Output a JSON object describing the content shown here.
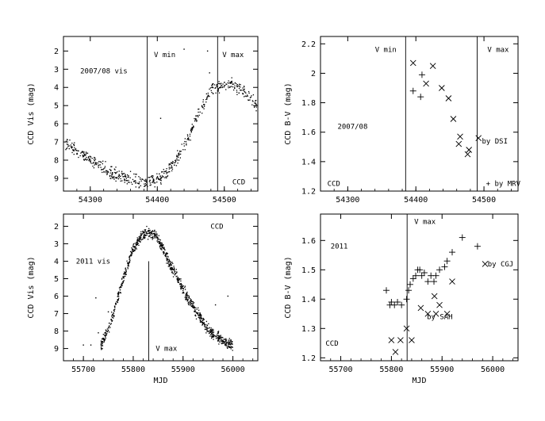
{
  "chart_data": [
    {
      "id": "p1",
      "type": "scatter",
      "title": "",
      "xlabel": "",
      "ylabel": "CCD Vis (mag)",
      "xlim": [
        54260,
        54550
      ],
      "ylim": [
        1.2,
        9.7
      ],
      "y_inverted": true,
      "xticks": [
        54300,
        54400,
        54500
      ],
      "yticks": [
        2,
        3,
        4,
        5,
        6,
        7,
        8,
        9
      ],
      "vlines": [
        54385,
        54490
      ],
      "annotations": [
        {
          "text": "V min",
          "x": 54395,
          "y": 2.2
        },
        {
          "text": "V max",
          "x": 54497,
          "y": 2.2
        },
        {
          "text": "2007/08 vis",
          "x": 54285,
          "y": 3.1
        },
        {
          "text": "CCD",
          "x": 54512,
          "y": 9.2
        }
      ],
      "series": [
        {
          "marker": "dot",
          "curve": [
            [
              54263,
              7.1
            ],
            [
              54285,
              7.6
            ],
            [
              54305,
              8.1
            ],
            [
              54325,
              8.6
            ],
            [
              54345,
              8.9
            ],
            [
              54365,
              9.1
            ],
            [
              54385,
              9.25
            ],
            [
              54405,
              9.0
            ],
            [
              54420,
              8.4
            ],
            [
              54435,
              7.6
            ],
            [
              54448,
              6.6
            ],
            [
              54460,
              5.6
            ],
            [
              54472,
              4.7
            ],
            [
              54482,
              4.1
            ],
            [
              54495,
              3.9
            ],
            [
              54510,
              3.85
            ],
            [
              54525,
              4.1
            ],
            [
              54540,
              4.6
            ],
            [
              54548,
              5.0
            ]
          ],
          "spread": 0.25,
          "n": 600,
          "outliers": [
            [
              54440,
              1.9
            ],
            [
              54475,
              2.0
            ],
            [
              54405,
              5.7
            ],
            [
              54478,
              3.2
            ]
          ]
        }
      ]
    },
    {
      "id": "p2",
      "type": "scatter",
      "title": "",
      "xlabel": "",
      "ylabel": "CCD B-V (mag)",
      "xlim": [
        54260,
        54550
      ],
      "ylim": [
        1.2,
        2.25
      ],
      "y_inverted": false,
      "xticks": [
        54300,
        54400,
        54500
      ],
      "yticks": [
        1.2,
        1.4,
        1.6,
        1.8,
        2,
        2.2
      ],
      "ytick_labels": [
        "1.2",
        "1.4",
        "1.6",
        "1.8",
        "2",
        "2.2"
      ],
      "vlines": [
        54385,
        54490
      ],
      "annotations": [
        {
          "text": "V min",
          "x": 54340,
          "y": 2.16
        },
        {
          "text": "V max",
          "x": 54505,
          "y": 2.16
        },
        {
          "text": "2007/08",
          "x": 54285,
          "y": 1.64
        },
        {
          "text": "CCD",
          "x": 54270,
          "y": 1.25
        },
        {
          "text": "by DSI",
          "x": 54497,
          "y": 1.54
        },
        {
          "text": "+ by MRV",
          "x": 54503,
          "y": 1.25
        }
      ],
      "series": [
        {
          "name": "by DSI",
          "marker": "x",
          "points": [
            [
              54396,
              2.07
            ],
            [
              54415,
              1.93
            ],
            [
              54425,
              2.05
            ],
            [
              54438,
              1.9
            ],
            [
              54448,
              1.83
            ],
            [
              54455,
              1.69
            ],
            [
              54465,
              1.57
            ],
            [
              54463,
              1.52
            ],
            [
              54476,
              1.45
            ],
            [
              54478,
              1.48
            ],
            [
              54492,
              1.56
            ]
          ]
        },
        {
          "name": "+ by MRV",
          "marker": "plus",
          "points": [
            [
              54396,
              1.88
            ],
            [
              54407,
              1.84
            ],
            [
              54409,
              1.99
            ]
          ]
        }
      ]
    },
    {
      "id": "p3",
      "type": "scatter",
      "title": "",
      "xlabel": "MJD",
      "ylabel": "CCD Vis (mag)",
      "xlim": [
        55660,
        56050
      ],
      "ylim": [
        1.3,
        9.7
      ],
      "y_inverted": true,
      "xticks": [
        55700,
        55800,
        55900,
        56000
      ],
      "yticks": [
        2,
        3,
        4,
        5,
        6,
        7,
        8,
        9
      ],
      "vlines": [
        55831
      ],
      "vline_top_y": 4.0,
      "annotations": [
        {
          "text": "CCD",
          "x": 55955,
          "y": 2.0
        },
        {
          "text": "2011 vis",
          "x": 55685,
          "y": 4.0
        },
        {
          "text": "V max",
          "x": 55845,
          "y": 9.0
        }
      ],
      "series": [
        {
          "marker": "dot",
          "curve": [
            [
              55735,
              8.9
            ],
            [
              55755,
              7.5
            ],
            [
              55770,
              6.0
            ],
            [
              55785,
              4.5
            ],
            [
              55800,
              3.3
            ],
            [
              55815,
              2.6
            ],
            [
              55830,
              2.35
            ],
            [
              55845,
              2.5
            ],
            [
              55860,
              3.3
            ],
            [
              55880,
              4.5
            ],
            [
              55900,
              5.6
            ],
            [
              55920,
              6.6
            ],
            [
              55940,
              7.5
            ],
            [
              55960,
              8.2
            ],
            [
              55980,
              8.6
            ],
            [
              56000,
              8.8
            ]
          ],
          "spread": 0.22,
          "n": 900,
          "outliers": [
            [
              55700,
              8.8
            ],
            [
              55715,
              8.8
            ],
            [
              55730,
              8.1
            ],
            [
              55750,
              6.9
            ],
            [
              55725,
              6.1
            ],
            [
              55965,
              6.5
            ],
            [
              55990,
              6.0
            ]
          ]
        }
      ]
    },
    {
      "id": "p4",
      "type": "scatter",
      "title": "",
      "xlabel": "MJD",
      "ylabel": "CCD B-V (mag)",
      "xlim": [
        55660,
        56050
      ],
      "ylim": [
        1.19,
        1.69
      ],
      "y_inverted": false,
      "xticks": [
        55700,
        55800,
        55900,
        56000
      ],
      "yticks": [
        1.2,
        1.3,
        1.4,
        1.5,
        1.6
      ],
      "vlines": [
        55831
      ],
      "annotations": [
        {
          "text": "V max",
          "x": 55845,
          "y": 1.665
        },
        {
          "text": "2011",
          "x": 55680,
          "y": 1.58
        },
        {
          "text": "CCD",
          "x": 55670,
          "y": 1.25
        },
        {
          "text": "by CGJ",
          "x": 55990,
          "y": 1.52
        },
        {
          "text": "by SAH",
          "x": 55870,
          "y": 1.34
        }
      ],
      "series": [
        {
          "name": "by CGJ",
          "marker": "plus",
          "points": [
            [
              55790,
              1.43
            ],
            [
              55797,
              1.38
            ],
            [
              55800,
              1.39
            ],
            [
              55806,
              1.38
            ],
            [
              55812,
              1.39
            ],
            [
              55820,
              1.38
            ],
            [
              55830,
              1.4
            ],
            [
              55834,
              1.43
            ],
            [
              55837,
              1.45
            ],
            [
              55843,
              1.47
            ],
            [
              55848,
              1.48
            ],
            [
              55852,
              1.5
            ],
            [
              55856,
              1.5
            ],
            [
              55860,
              1.48
            ],
            [
              55865,
              1.49
            ],
            [
              55872,
              1.46
            ],
            [
              55878,
              1.48
            ],
            [
              55884,
              1.46
            ],
            [
              55888,
              1.48
            ],
            [
              55895,
              1.5
            ],
            [
              55905,
              1.51
            ],
            [
              55910,
              1.53
            ],
            [
              55920,
              1.56
            ],
            [
              55940,
              1.61
            ],
            [
              55970,
              1.58
            ]
          ]
        },
        {
          "name": "by SAH",
          "marker": "x",
          "points": [
            [
              55800,
              1.26
            ],
            [
              55808,
              1.22
            ],
            [
              55818,
              1.26
            ],
            [
              55830,
              1.3
            ],
            [
              55840,
              1.26
            ],
            [
              55858,
              1.37
            ],
            [
              55872,
              1.35
            ],
            [
              55885,
              1.41
            ],
            [
              55888,
              1.35
            ],
            [
              55895,
              1.38
            ],
            [
              55910,
              1.35
            ],
            [
              55920,
              1.46
            ],
            [
              55985,
              1.52
            ]
          ]
        }
      ]
    }
  ]
}
